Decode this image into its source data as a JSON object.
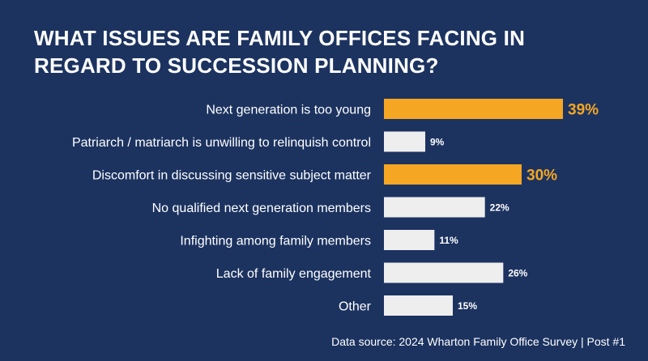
{
  "chart_data": {
    "type": "bar",
    "orientation": "horizontal",
    "title_lines": [
      "WHAT ISSUES ARE FAMILY OFFICES FACING IN",
      "REGARD TO SUCCESSION PLANNING?"
    ],
    "categories": [
      "Next generation is too young",
      "Patriarch / matriarch is unwilling to relinquish control",
      "Discomfort in discussing sensitive subject matter",
      "No qualified next generation members",
      "Infighting among family members",
      "Lack of family engagement",
      "Other"
    ],
    "values": [
      39,
      9,
      30,
      22,
      11,
      26,
      15
    ],
    "value_labels": [
      "39%",
      "9%",
      "30%",
      "22%",
      "11%",
      "26%",
      "15%"
    ],
    "highlighted": [
      true,
      false,
      true,
      false,
      false,
      false,
      false
    ],
    "xlim": [
      0,
      39
    ],
    "colors": {
      "highlight": "#f5a623",
      "normal": "#eeeeee",
      "background": "#1c3360",
      "label": "#ffffff"
    }
  },
  "footer": {
    "source": "Data source: 2024 Wharton Family Office Survey | Post #1"
  }
}
